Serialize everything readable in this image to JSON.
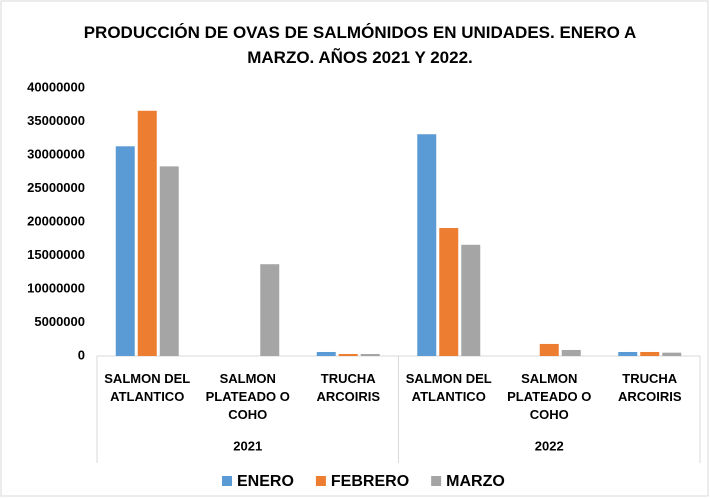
{
  "chart_data": {
    "type": "bar",
    "title": "PRODUCCIÓN DE OVAS DE SALMÓNIDOS EN UNIDADES. ENERO A MARZO. AÑOS 2021 Y 2022.",
    "category_groups": [
      {
        "name": "2021",
        "categories": [
          "SALMON DEL ATLANTICO",
          "SALMON PLATEADO O COHO",
          "TRUCHA ARCOIRIS"
        ]
      },
      {
        "name": "2022",
        "categories": [
          "SALMON DEL ATLANTICO",
          "SALMON PLATEADO O COHO",
          "TRUCHA ARCOIRIS"
        ]
      }
    ],
    "series": [
      {
        "name": "ENERO",
        "color": "#5b9bd5",
        "values": [
          31300000,
          0,
          600000,
          33100000,
          0,
          600000
        ]
      },
      {
        "name": "FEBRERO",
        "color": "#ed7d31",
        "values": [
          36600000,
          0,
          300000,
          19100000,
          1800000,
          600000
        ]
      },
      {
        "name": "MARZO",
        "color": "#a5a5a5",
        "values": [
          28300000,
          13700000,
          300000,
          16600000,
          900000,
          500000
        ]
      }
    ],
    "ylim": [
      0,
      40000000
    ],
    "yticks": [
      0,
      5000000,
      10000000,
      15000000,
      20000000,
      25000000,
      30000000,
      35000000,
      40000000
    ],
    "grid": false,
    "legend": "bottom"
  }
}
